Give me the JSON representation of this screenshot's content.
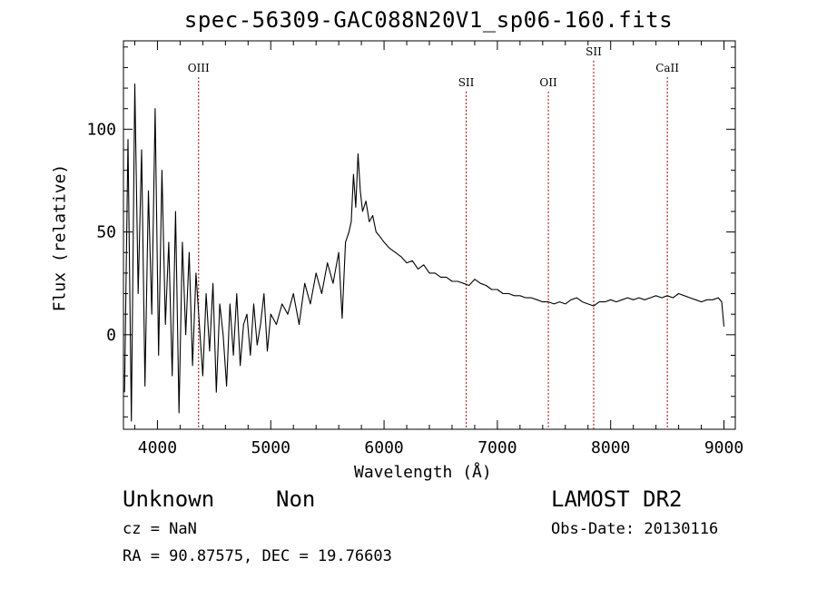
{
  "chart_data": {
    "type": "line",
    "title": "spec-56309-GAC088N20V1_sp06-160.fits",
    "xlabel": "Wavelength (Å)",
    "ylabel": "Flux (relative)",
    "xlim": [
      3700,
      9100
    ],
    "ylim": [
      -46,
      143
    ],
    "x_ticks": [
      4000,
      5000,
      6000,
      7000,
      8000,
      9000
    ],
    "y_ticks": [
      0,
      50,
      100
    ],
    "grid": false,
    "line_color": "#000000",
    "marker_color": "#a00000",
    "lines": [
      {
        "label": "OIII",
        "wavelength": 4363,
        "label_flux": 128
      },
      {
        "label": "SII",
        "wavelength": 6725,
        "label_flux": 121
      },
      {
        "label": "OII",
        "wavelength": 7450,
        "label_flux": 121
      },
      {
        "label": "SII",
        "wavelength": 7850,
        "label_flux": 136
      },
      {
        "label": "CaII",
        "wavelength": 8500,
        "label_flux": 128
      }
    ],
    "series": [
      {
        "name": "Flux",
        "x": [
          3710,
          3740,
          3770,
          3800,
          3830,
          3860,
          3890,
          3920,
          3950,
          3980,
          4010,
          4040,
          4070,
          4100,
          4130,
          4160,
          4190,
          4220,
          4250,
          4280,
          4310,
          4340,
          4370,
          4400,
          4430,
          4460,
          4490,
          4520,
          4550,
          4580,
          4610,
          4640,
          4670,
          4700,
          4730,
          4760,
          4790,
          4820,
          4850,
          4880,
          4910,
          4940,
          4970,
          5000,
          5050,
          5100,
          5150,
          5200,
          5250,
          5300,
          5350,
          5400,
          5450,
          5500,
          5550,
          5600,
          5630,
          5660,
          5690,
          5710,
          5730,
          5750,
          5770,
          5790,
          5810,
          5840,
          5870,
          5900,
          5930,
          5960,
          6000,
          6050,
          6100,
          6150,
          6200,
          6250,
          6300,
          6350,
          6400,
          6450,
          6500,
          6550,
          6600,
          6650,
          6700,
          6750,
          6800,
          6850,
          6900,
          6950,
          7000,
          7050,
          7100,
          7150,
          7200,
          7250,
          7300,
          7350,
          7400,
          7450,
          7500,
          7550,
          7600,
          7650,
          7700,
          7750,
          7800,
          7850,
          7900,
          7950,
          8000,
          8050,
          8100,
          8150,
          8200,
          8250,
          8300,
          8350,
          8400,
          8450,
          8500,
          8550,
          8600,
          8650,
          8700,
          8750,
          8800,
          8850,
          8900,
          8950,
          8980,
          9000
        ],
        "y": [
          -28,
          95,
          -42,
          122,
          20,
          90,
          -25,
          70,
          10,
          110,
          -10,
          80,
          5,
          45,
          -20,
          60,
          -38,
          45,
          0,
          40,
          -15,
          30,
          5,
          -20,
          20,
          -8,
          25,
          -28,
          15,
          0,
          -25,
          15,
          -10,
          20,
          -15,
          5,
          10,
          -10,
          15,
          -5,
          5,
          20,
          -8,
          10,
          5,
          15,
          10,
          20,
          5,
          25,
          15,
          30,
          20,
          35,
          25,
          40,
          8,
          45,
          50,
          55,
          78,
          62,
          88,
          70,
          60,
          65,
          55,
          58,
          50,
          48,
          45,
          42,
          40,
          38,
          35,
          36,
          32,
          34,
          30,
          30,
          28,
          28,
          26,
          26,
          25,
          24,
          27,
          25,
          24,
          22,
          22,
          20,
          20,
          19,
          19,
          18,
          18,
          17,
          16,
          16,
          15,
          16,
          15,
          17,
          18,
          16,
          15,
          14,
          16,
          16,
          17,
          16,
          17,
          18,
          17,
          18,
          17,
          18,
          19,
          18,
          19,
          18,
          20,
          19,
          18,
          17,
          16,
          17,
          17,
          18,
          16,
          4
        ]
      }
    ]
  },
  "footer": {
    "object_class": "Unknown",
    "object_subclass": "Non",
    "survey": "LAMOST DR2",
    "redshift": "cz = NaN",
    "obs_date": "Obs-Date: 20130116",
    "radec": "RA =  90.87575, DEC =  19.76603"
  }
}
